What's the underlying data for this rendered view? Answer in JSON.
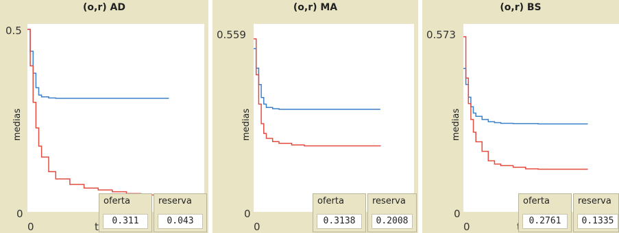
{
  "panels": [
    {
      "title": "(o,r) AD",
      "ymax_label": "0.5",
      "ymin_label": "0",
      "xmin_label": "0",
      "x_partial_label": "t",
      "ylabel": "medias",
      "monitors": [
        {
          "label": "oferta",
          "value": "0.311"
        },
        {
          "label": "reserva",
          "value": "0.043"
        }
      ]
    },
    {
      "title": "(o,r) MA",
      "ymax_label": "0.559",
      "ymin_label": "0",
      "xmin_label": "0",
      "ylabel": "medias",
      "monitors": [
        {
          "label": "oferta",
          "value": "0.3138"
        },
        {
          "label": "reserva",
          "value": "0.2008"
        }
      ]
    },
    {
      "title": "(o,r) BS",
      "ymax_label": "0.573",
      "ymin_label": "0",
      "xmin_label": "0",
      "x_partial_label": "t",
      "ylabel": "medias",
      "monitors": [
        {
          "label": "oferta",
          "value": "0.2761"
        },
        {
          "label": "reserva",
          "value": "0.1335"
        }
      ]
    }
  ],
  "colors": {
    "oferta_line": "#3a7fc9",
    "reserva_line": "#e34b3e",
    "panel_bg": "#e8e4c4"
  },
  "chart_data": [
    {
      "type": "line",
      "title": "(o,r) AD",
      "ylabel": "medias",
      "ylim": [
        0,
        0.5
      ],
      "series": [
        {
          "name": "oferta",
          "x": [
            0,
            2,
            4,
            6,
            8,
            10,
            15,
            20,
            30,
            60,
            100
          ],
          "values": [
            0.5,
            0.44,
            0.38,
            0.34,
            0.32,
            0.315,
            0.312,
            0.311,
            0.311,
            0.311,
            0.311
          ]
        },
        {
          "name": "reserva",
          "x": [
            0,
            2,
            4,
            6,
            8,
            10,
            15,
            20,
            30,
            40,
            50,
            60,
            70,
            80,
            100
          ],
          "values": [
            0.5,
            0.4,
            0.3,
            0.23,
            0.18,
            0.15,
            0.11,
            0.09,
            0.075,
            0.065,
            0.06,
            0.055,
            0.05,
            0.046,
            0.043
          ]
        }
      ]
    },
    {
      "type": "line",
      "title": "(o,r) MA",
      "ylabel": "medias",
      "ylim": [
        0,
        0.559
      ],
      "series": [
        {
          "name": "oferta",
          "x": [
            0,
            2,
            4,
            6,
            8,
            10,
            15,
            20,
            40,
            100
          ],
          "values": [
            0.5,
            0.44,
            0.39,
            0.35,
            0.33,
            0.32,
            0.316,
            0.314,
            0.314,
            0.314
          ]
        },
        {
          "name": "reserva",
          "x": [
            0,
            2,
            4,
            6,
            8,
            10,
            15,
            20,
            30,
            40,
            100
          ],
          "values": [
            0.53,
            0.42,
            0.33,
            0.27,
            0.24,
            0.225,
            0.215,
            0.21,
            0.205,
            0.202,
            0.201
          ]
        }
      ]
    },
    {
      "type": "line",
      "title": "(o,r) BS",
      "ylabel": "medias",
      "ylim": [
        0,
        0.573
      ],
      "series": [
        {
          "name": "oferta",
          "x": [
            0,
            2,
            4,
            6,
            8,
            10,
            15,
            20,
            25,
            30,
            40,
            60,
            100
          ],
          "values": [
            0.45,
            0.4,
            0.36,
            0.33,
            0.31,
            0.3,
            0.29,
            0.283,
            0.28,
            0.278,
            0.277,
            0.276,
            0.276
          ]
        },
        {
          "name": "reserva",
          "x": [
            0,
            2,
            4,
            6,
            8,
            10,
            15,
            20,
            25,
            30,
            40,
            50,
            60,
            100
          ],
          "values": [
            0.55,
            0.42,
            0.34,
            0.29,
            0.25,
            0.22,
            0.19,
            0.16,
            0.15,
            0.145,
            0.14,
            0.135,
            0.134,
            0.134
          ]
        }
      ]
    }
  ]
}
